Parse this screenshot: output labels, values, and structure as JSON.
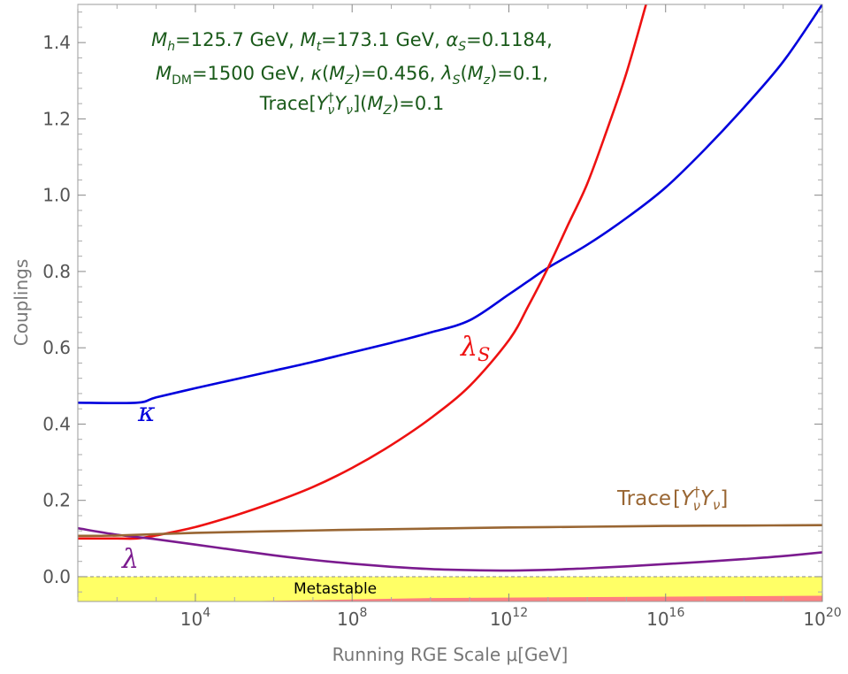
{
  "chart_data": {
    "type": "line",
    "xscale": "log10",
    "xlim_exponent": [
      1.0,
      20.0
    ],
    "ylim": [
      -0.065,
      1.5
    ],
    "xlabel": "Running RGE Scale μ[GeV]",
    "ylabel": "Couplings",
    "x_ticks": [
      {
        "exp": 4,
        "base": "10",
        "sup": "4"
      },
      {
        "exp": 8,
        "base": "10",
        "sup": "8"
      },
      {
        "exp": 12,
        "base": "10",
        "sup": "12"
      },
      {
        "exp": 16,
        "base": "10",
        "sup": "16"
      },
      {
        "exp": 20,
        "base": "10",
        "sup": "20"
      }
    ],
    "y_ticks": [
      {
        "value": 0.0,
        "label": "0.0"
      },
      {
        "value": 0.2,
        "label": "0.2"
      },
      {
        "value": 0.4,
        "label": "0.4"
      },
      {
        "value": 0.6,
        "label": "0.6"
      },
      {
        "value": 0.8,
        "label": "0.8"
      },
      {
        "value": 1.0,
        "label": "1.0"
      },
      {
        "value": 1.2,
        "label": "1.2"
      },
      {
        "value": 1.4,
        "label": "1.4"
      }
    ],
    "series": [
      {
        "name": "kappa",
        "label": "κ",
        "color": "#0000dd",
        "points": [
          [
            1.0,
            0.456
          ],
          [
            2.5,
            0.456
          ],
          [
            3.0,
            0.47
          ],
          [
            4.0,
            0.494
          ],
          [
            5.0,
            0.517
          ],
          [
            6.0,
            0.54
          ],
          [
            7.0,
            0.563
          ],
          [
            8.0,
            0.588
          ],
          [
            9.0,
            0.613
          ],
          [
            10.0,
            0.64
          ],
          [
            11.0,
            0.672
          ],
          [
            12.0,
            0.74
          ],
          [
            12.5,
            0.775
          ],
          [
            13.0,
            0.81
          ],
          [
            14.0,
            0.87
          ],
          [
            15.0,
            0.94
          ],
          [
            16.0,
            1.02
          ],
          [
            17.0,
            1.12
          ],
          [
            18.0,
            1.23
          ],
          [
            19.0,
            1.35
          ],
          [
            20.0,
            1.5
          ]
        ]
      },
      {
        "name": "lambda_S",
        "label": "λ",
        "label_sub": "S",
        "color": "#ee1111",
        "points": [
          [
            1.0,
            0.1
          ],
          [
            2.0,
            0.1
          ],
          [
            2.5,
            0.1
          ],
          [
            3.0,
            0.108
          ],
          [
            4.0,
            0.13
          ],
          [
            5.0,
            0.16
          ],
          [
            6.0,
            0.195
          ],
          [
            7.0,
            0.235
          ],
          [
            8.0,
            0.285
          ],
          [
            9.0,
            0.345
          ],
          [
            10.0,
            0.415
          ],
          [
            11.0,
            0.5
          ],
          [
            12.0,
            0.62
          ],
          [
            12.5,
            0.71
          ],
          [
            13.0,
            0.81
          ],
          [
            13.5,
            0.92
          ],
          [
            14.0,
            1.03
          ],
          [
            14.5,
            1.17
          ],
          [
            15.0,
            1.32
          ],
          [
            15.5,
            1.5
          ]
        ]
      },
      {
        "name": "lambda",
        "label": "λ",
        "color": "#7b1b8f",
        "points": [
          [
            1.0,
            0.127
          ],
          [
            2.0,
            0.11
          ],
          [
            3.0,
            0.098
          ],
          [
            4.0,
            0.084
          ],
          [
            5.0,
            0.07
          ],
          [
            6.0,
            0.056
          ],
          [
            7.0,
            0.044
          ],
          [
            8.0,
            0.034
          ],
          [
            9.0,
            0.026
          ],
          [
            10.0,
            0.02
          ],
          [
            11.0,
            0.017
          ],
          [
            12.0,
            0.016
          ],
          [
            13.0,
            0.018
          ],
          [
            14.0,
            0.022
          ],
          [
            15.0,
            0.027
          ],
          [
            16.0,
            0.033
          ],
          [
            17.0,
            0.039
          ],
          [
            18.0,
            0.046
          ],
          [
            19.0,
            0.054
          ],
          [
            20.0,
            0.064
          ]
        ]
      },
      {
        "name": "trace",
        "label": "Trace[Yν† Yν]",
        "color": "#996633",
        "points": [
          [
            1.0,
            0.107
          ],
          [
            2.0,
            0.108
          ],
          [
            4.0,
            0.115
          ],
          [
            6.0,
            0.119
          ],
          [
            8.0,
            0.123
          ],
          [
            10.0,
            0.126
          ],
          [
            12.0,
            0.129
          ],
          [
            14.0,
            0.131
          ],
          [
            16.0,
            0.133
          ],
          [
            18.0,
            0.134
          ],
          [
            20.0,
            0.135
          ]
        ]
      }
    ],
    "regions": [
      {
        "name": "metastable",
        "label": "Metastable",
        "color": "#ffff66",
        "ymin": -0.065,
        "ymax": 0.0
      }
    ],
    "zero_line_dashed": true
  },
  "annotation": {
    "line1": "Mₕ=125.7 GeV, Mₜ=173.1 GeV, αS=0.1184,",
    "line2": "MDM=1500 GeV, κ(MZ)=0.456, λS(Mz)=0.1,",
    "line3": "Trace[Yν†Yν](MZ)=0.1",
    "color": "#1a5a1a"
  }
}
